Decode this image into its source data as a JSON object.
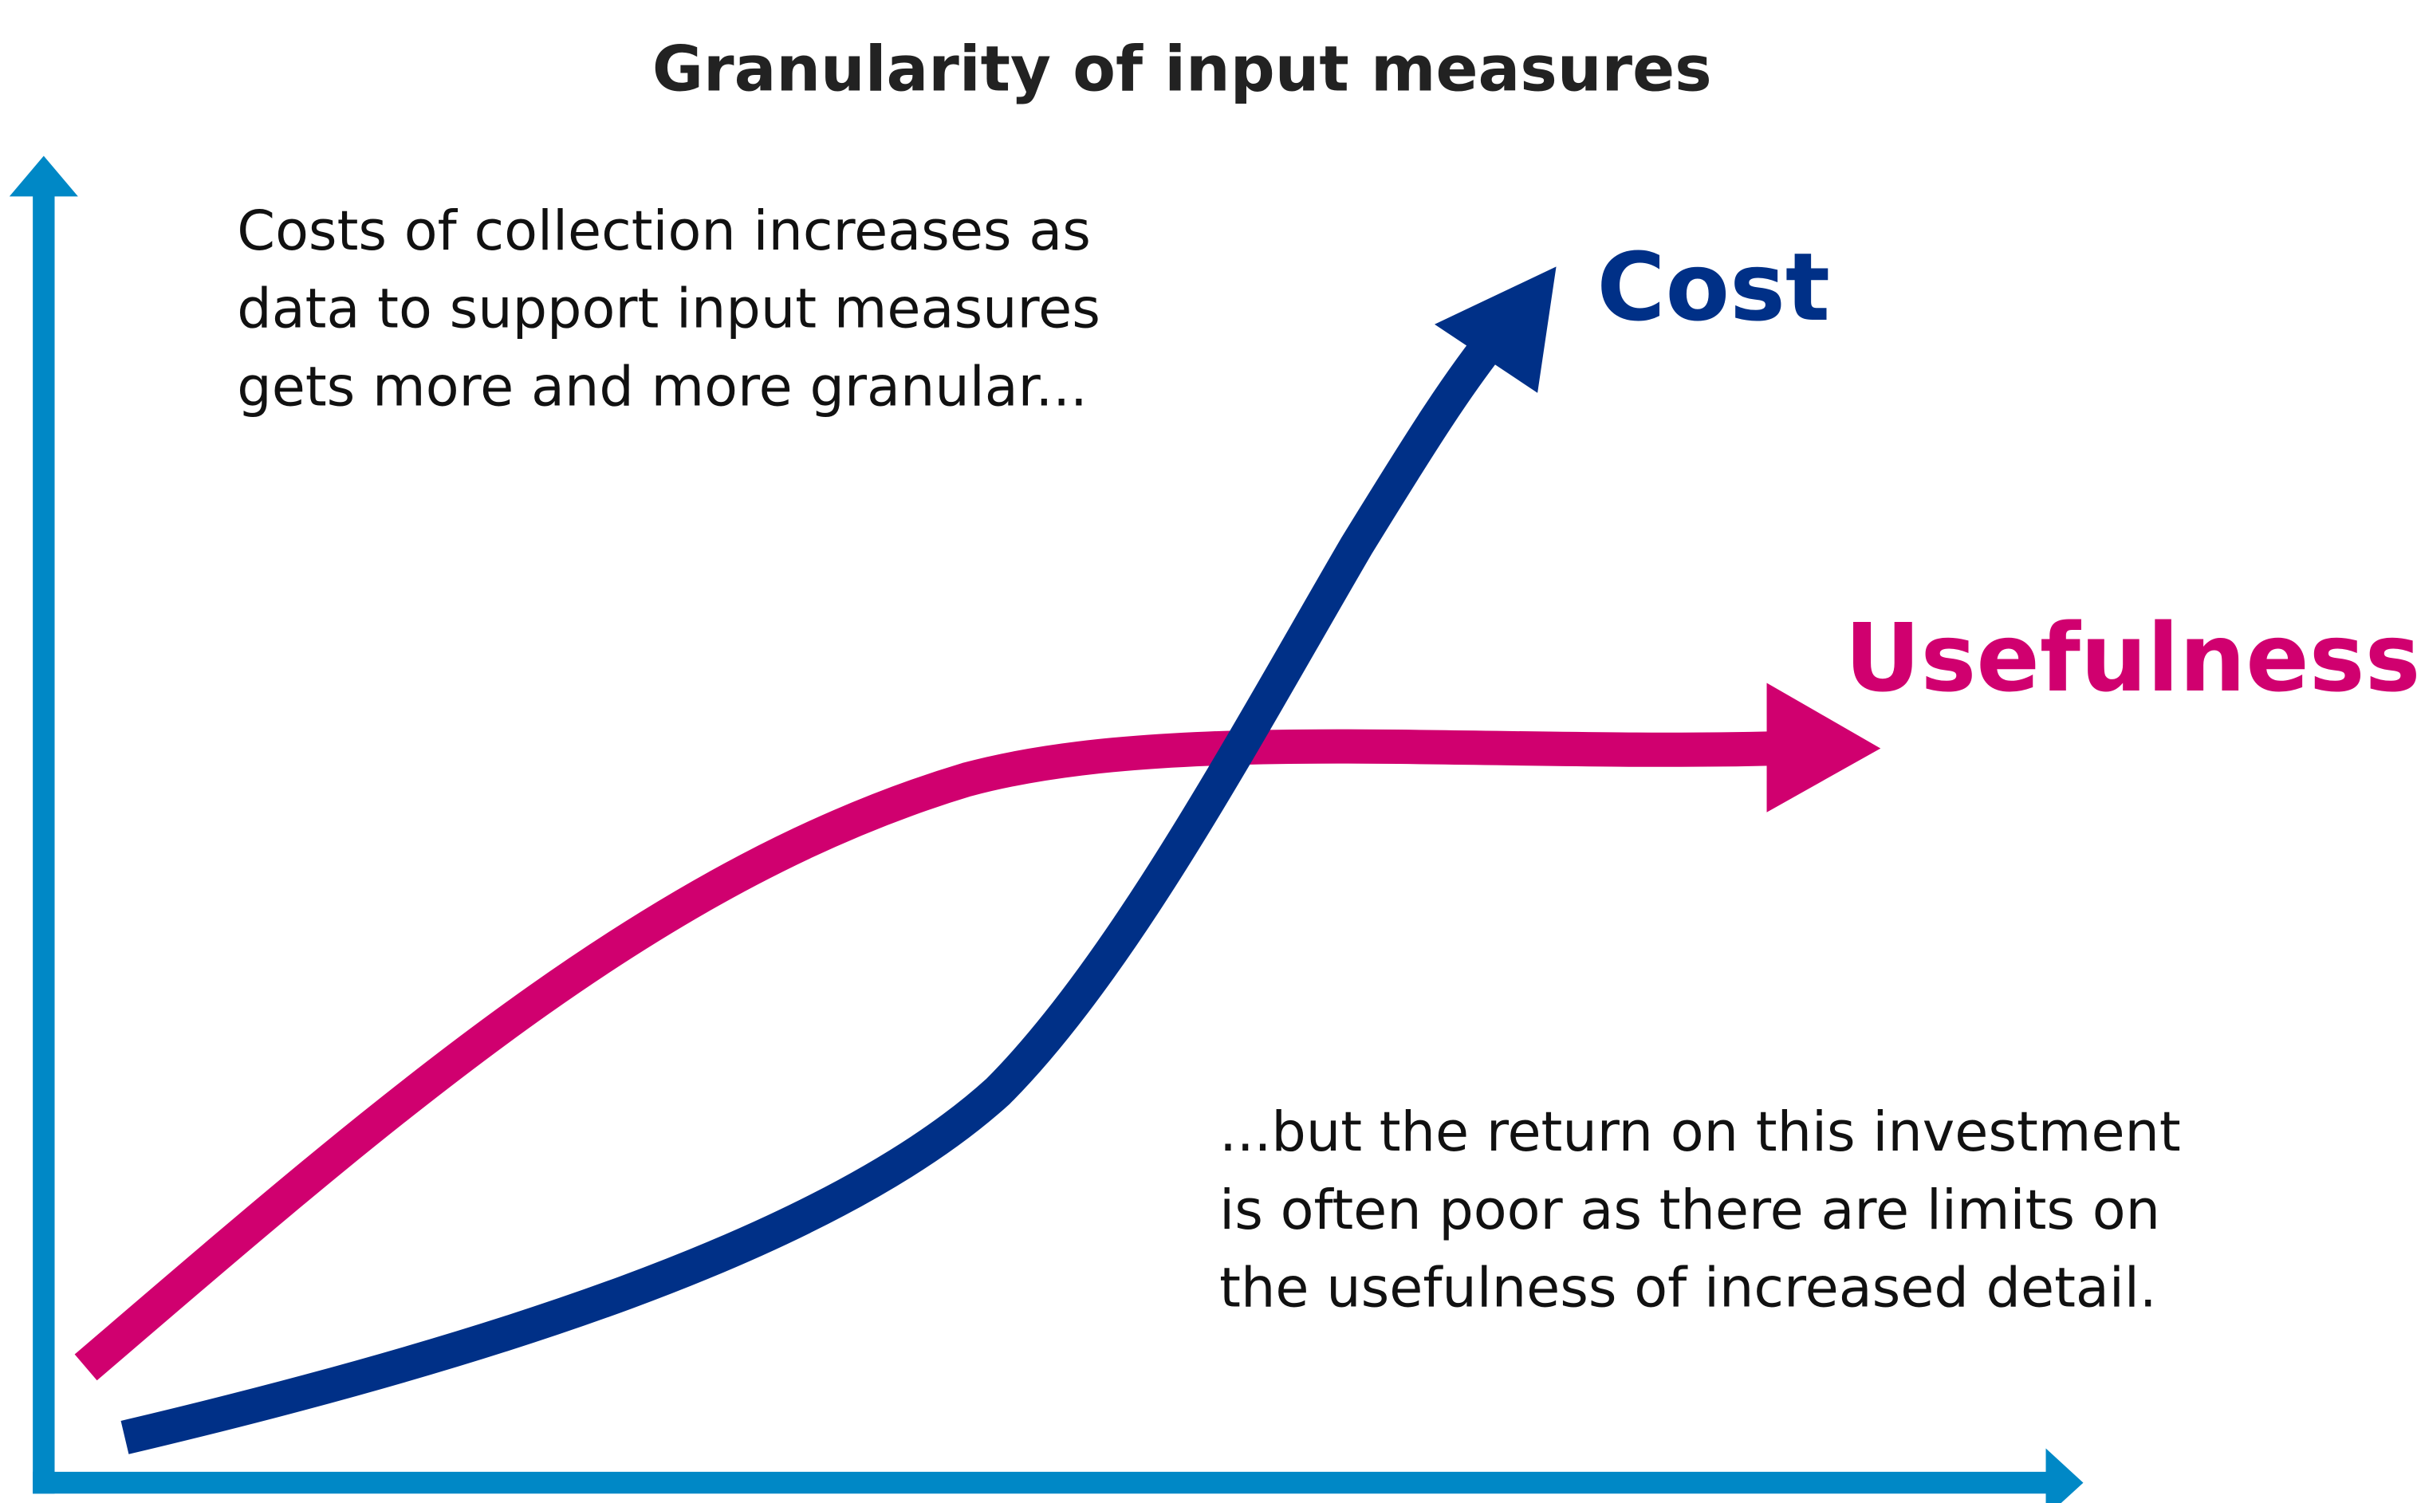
{
  "title": "Granularity of input measures",
  "curves": [
    {
      "label": "Cost"
    },
    {
      "label": "Usefulness"
    }
  ],
  "annotations": [
    {
      "lines": [
        "Costs of collection increases as",
        "data to support input measures",
        "gets more and more granular..."
      ]
    },
    {
      "lines": [
        "...but the return on this investment",
        "is often poor as there are limits on",
        "the usefulness of increased detail."
      ]
    }
  ]
}
